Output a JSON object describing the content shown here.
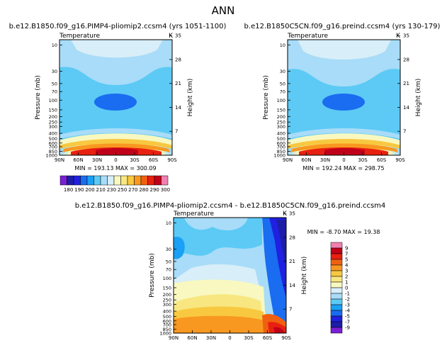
{
  "page_title": "ANN",
  "chart_data": [
    {
      "type": "heatmap",
      "title": "b.e12.B1850.f09_g16.PIMP4-pliomip2.ccsm4 (yrs 1051-1100)",
      "variable": "Temperature",
      "units": "K",
      "xlabel": "",
      "ylabel": "Pressure (mb)",
      "ylabel_right": "Height (km)",
      "x_ticks": [
        "90N",
        "60N",
        "30N",
        "0",
        "30S",
        "60S",
        "90S"
      ],
      "y_ticks": [
        "10",
        "30",
        "50",
        "70",
        "100",
        "150",
        "200",
        "250",
        "300",
        "400",
        "500",
        "600",
        "700",
        "850",
        "1000"
      ],
      "y_ticks_right": [
        "35",
        "28",
        "21",
        "14",
        "7"
      ],
      "stats": "MIN = 193.13   MAX = 300.09",
      "min": 193.13,
      "max": 300.09
    },
    {
      "type": "heatmap",
      "title": "b.e12.B1850C5CN.f09_g16.preind.ccsm4 (yrs 130-179)",
      "variable": "Temperature",
      "units": "K",
      "xlabel": "",
      "ylabel": "Pressure (mb)",
      "ylabel_right": "Height (km)",
      "x_ticks": [
        "90N",
        "60N",
        "30N",
        "0",
        "30S",
        "60S",
        "90S"
      ],
      "y_ticks": [
        "10",
        "30",
        "50",
        "70",
        "100",
        "150",
        "200",
        "250",
        "300",
        "400",
        "500",
        "600",
        "700",
        "850",
        "1000"
      ],
      "y_ticks_right": [
        "35",
        "28",
        "21",
        "14",
        "7"
      ],
      "stats": "MIN = 192.24   MAX = 298.75",
      "min": 192.24,
      "max": 298.75
    },
    {
      "type": "heatmap",
      "title": "b.e12.B1850.f09_g16.PIMP4-pliomip2.ccsm4 - b.e12.B1850C5CN.f09_g16.preind.ccsm4",
      "variable": "Temperature",
      "units": "K",
      "xlabel": "",
      "ylabel": "Pressure (mb)",
      "ylabel_right": "Height (km)",
      "x_ticks": [
        "90N",
        "60N",
        "30N",
        "0",
        "30S",
        "60S",
        "90S"
      ],
      "y_ticks": [
        "10",
        "30",
        "50",
        "70",
        "100",
        "150",
        "200",
        "250",
        "300",
        "400",
        "500",
        "600",
        "700",
        "850",
        "1000"
      ],
      "y_ticks_right": [
        "35",
        "28",
        "21",
        "14",
        "7"
      ],
      "stats": "MIN = -8.70   MAX = 19.38",
      "min": -8.7,
      "max": 19.38
    }
  ],
  "colorbar_top": {
    "labels": [
      "180",
      "190",
      "200",
      "210",
      "230",
      "250",
      "270",
      "280",
      "290",
      "300"
    ],
    "colors": [
      "#7a1fd6",
      "#1d1da8",
      "#2020e0",
      "#1a6cf0",
      "#1aa0f5",
      "#5ccaf5",
      "#a8dcf8",
      "#d8eef8",
      "#f8f8c0",
      "#f8e680",
      "#f8c840",
      "#f89820",
      "#f06010",
      "#e82010",
      "#c00018",
      "#f080b0"
    ]
  },
  "colorbar_diff": {
    "labels": [
      "9",
      "7",
      "5",
      "4",
      "3",
      "2",
      "1",
      "0",
      "-1",
      "-2",
      "-3",
      "-4",
      "-5",
      "-7",
      "-9"
    ],
    "colors": [
      "#f080b0",
      "#c00018",
      "#e82010",
      "#f06010",
      "#f89820",
      "#f8c840",
      "#f8e680",
      "#f8f8c0",
      "#d8eef8",
      "#a8dcf8",
      "#5ccaf5",
      "#1aa0f5",
      "#1a6cf0",
      "#2020e0",
      "#1d1da8",
      "#7a1fd6"
    ]
  }
}
